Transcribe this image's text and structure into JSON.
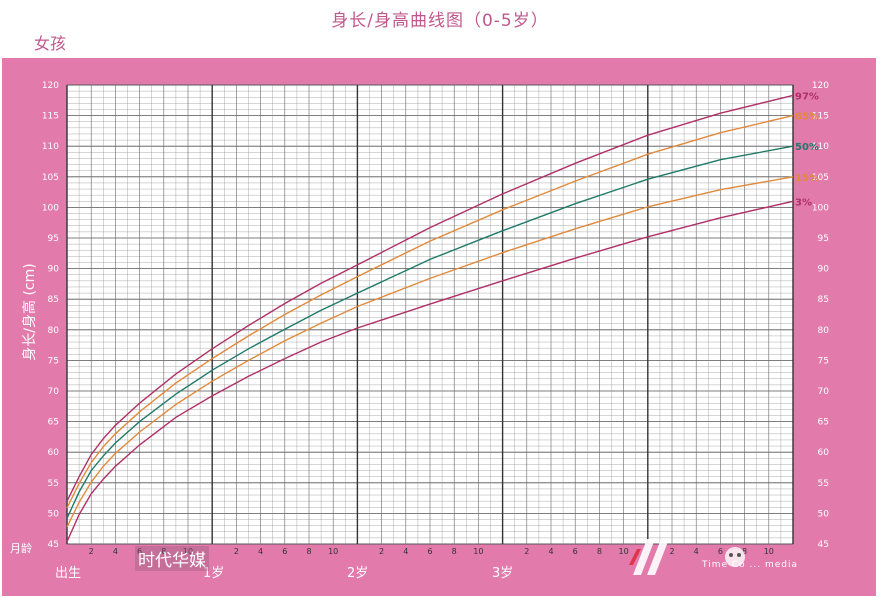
{
  "page": {
    "title": "身长/身高曲线图（0-5岁）",
    "gender": "女孩",
    "ylabel": "身长/身高 (cm)",
    "month_unit": "月龄",
    "age_labels": [
      "出生",
      "1岁",
      "2岁",
      "3岁"
    ],
    "watermark_text": "时代华媒",
    "watermark_sub": "Time Co ... media"
  },
  "colors": {
    "frame": "#e27aab",
    "title": "#c0588e",
    "grid": "#8a8a8a",
    "p97": "#b03068",
    "p85": "#e08a3c",
    "p50": "#1f7a68",
    "p15": "#e08a3c",
    "p3": "#b03068"
  },
  "chart_data": {
    "type": "line",
    "title": "身长/身高曲线图（0-5岁）",
    "xlabel": "月龄",
    "ylabel": "身长/身高 (cm)",
    "xlim": [
      0,
      60
    ],
    "ylim": [
      45,
      120
    ],
    "grid": true,
    "y_ticks": [
      45,
      50,
      55,
      60,
      65,
      70,
      75,
      80,
      85,
      90,
      95,
      100,
      105,
      110,
      115,
      120
    ],
    "x_tick_labels": [
      "2",
      "4",
      "6",
      "8",
      "10",
      "2",
      "4",
      "6",
      "8",
      "10",
      "2",
      "4",
      "6",
      "8",
      "10",
      "2",
      "4",
      "6",
      "8",
      "10",
      "2",
      "4",
      "6",
      "8",
      "10"
    ],
    "x_tick_months": [
      2,
      4,
      6,
      8,
      10,
      14,
      16,
      18,
      20,
      22,
      26,
      28,
      30,
      32,
      34,
      38,
      40,
      42,
      44,
      46,
      50,
      52,
      54,
      56,
      58
    ],
    "series": [
      {
        "name": "97%",
        "x": [
          0,
          1,
          2,
          3,
          4,
          6,
          9,
          12,
          15,
          18,
          21,
          24,
          30,
          36,
          42,
          48,
          54,
          60
        ],
        "y": [
          52.0,
          56.0,
          59.6,
          62.2,
          64.4,
          68.0,
          72.8,
          76.9,
          80.7,
          84.3,
          87.6,
          90.6,
          96.7,
          102.2,
          107.2,
          111.8,
          115.4,
          118.3
        ]
      },
      {
        "name": "85%",
        "x": [
          0,
          1,
          2,
          3,
          4,
          6,
          9,
          12,
          15,
          18,
          21,
          24,
          30,
          36,
          42,
          48,
          54,
          60
        ],
        "y": [
          50.9,
          54.9,
          58.3,
          60.9,
          63.0,
          66.6,
          71.3,
          75.3,
          79.0,
          82.5,
          85.7,
          88.7,
          94.5,
          99.6,
          104.3,
          108.7,
          112.2,
          115.0
        ]
      },
      {
        "name": "50%",
        "x": [
          0,
          1,
          2,
          3,
          4,
          6,
          9,
          12,
          15,
          18,
          21,
          24,
          30,
          36,
          42,
          48,
          54,
          60
        ],
        "y": [
          49.2,
          53.5,
          57.0,
          59.4,
          61.5,
          65.0,
          69.5,
          73.4,
          76.9,
          80.1,
          83.2,
          86.0,
          91.5,
          96.2,
          100.6,
          104.6,
          107.8,
          110.0
        ]
      },
      {
        "name": "15%",
        "x": [
          0,
          1,
          2,
          3,
          4,
          6,
          9,
          12,
          15,
          18,
          21,
          24,
          30,
          36,
          42,
          48,
          54,
          60
        ],
        "y": [
          47.8,
          51.8,
          55.1,
          57.7,
          59.8,
          63.3,
          67.8,
          71.6,
          75.0,
          78.2,
          81.1,
          83.8,
          88.4,
          92.6,
          96.5,
          100.1,
          102.9,
          105.0
        ]
      },
      {
        "name": "3%",
        "x": [
          0,
          1,
          2,
          3,
          4,
          6,
          9,
          12,
          15,
          18,
          21,
          24,
          30,
          36,
          42,
          48,
          54,
          60
        ],
        "y": [
          45.4,
          49.8,
          53.2,
          55.6,
          57.7,
          61.2,
          65.7,
          69.2,
          72.4,
          75.3,
          78.0,
          80.3,
          84.2,
          88.0,
          91.7,
          95.2,
          98.3,
          101.0
        ]
      }
    ]
  }
}
